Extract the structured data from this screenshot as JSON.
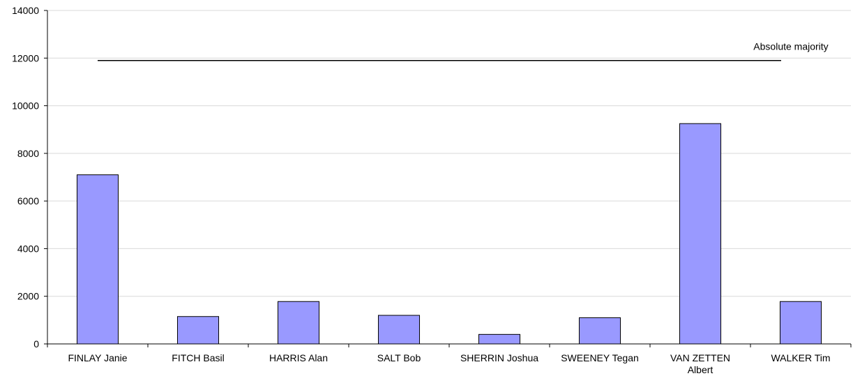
{
  "chart_data": {
    "type": "bar",
    "title": "",
    "xlabel": "",
    "ylabel": "",
    "categories": [
      [
        "FINLAY Janie"
      ],
      [
        "FITCH Basil"
      ],
      [
        "HARRIS Alan"
      ],
      [
        "SALT Bob"
      ],
      [
        "SHERRIN Joshua"
      ],
      [
        "SWEENEY Tegan"
      ],
      [
        "VAN ZETTEN",
        "Albert"
      ],
      [
        "WALKER Tim"
      ]
    ],
    "values": [
      7100,
      1150,
      1780,
      1200,
      400,
      1100,
      9250,
      1780
    ],
    "ylim": [
      0,
      14000
    ],
    "yticks": [
      "0",
      "2000",
      "4000",
      "6000",
      "8000",
      "10000",
      "12000",
      "14000"
    ],
    "grid": true,
    "bar_color": "#9999ff",
    "bar_stroke": "#000000",
    "gridline_color": "#d9d9d9",
    "annotation": {
      "label": "Absolute majority",
      "value": 11900,
      "from_category": 0,
      "to_category": 7
    }
  }
}
